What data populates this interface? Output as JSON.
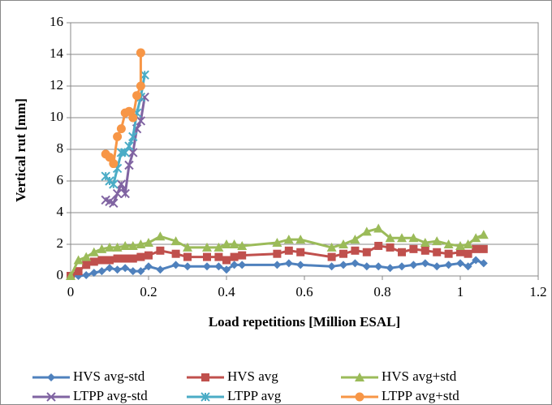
{
  "chart_data": {
    "type": "line",
    "x_label": "Load repetitions [Million ESAL]",
    "y_label": "Vertical rut [mm]",
    "xlim": [
      0,
      1.2
    ],
    "xticks": [
      0,
      0.2,
      0.4,
      0.6,
      0.8,
      1,
      1.2
    ],
    "ylim": [
      0,
      16
    ],
    "yticks": [
      0,
      2,
      4,
      6,
      8,
      10,
      12,
      14,
      16
    ],
    "grid": true,
    "series": [
      {
        "name": "HVS avg-std",
        "color": "#4f81bd",
        "marker": "diamond",
        "x": [
          0,
          0.02,
          0.04,
          0.06,
          0.08,
          0.1,
          0.12,
          0.14,
          0.16,
          0.18,
          0.2,
          0.23,
          0.27,
          0.3,
          0.35,
          0.38,
          0.4,
          0.42,
          0.44,
          0.53,
          0.56,
          0.59,
          0.67,
          0.7,
          0.73,
          0.76,
          0.79,
          0.82,
          0.85,
          0.88,
          0.91,
          0.94,
          0.97,
          1.0,
          1.02,
          1.04,
          1.06
        ],
        "values": [
          0,
          0,
          0.05,
          0.2,
          0.3,
          0.5,
          0.4,
          0.5,
          0.3,
          0.3,
          0.6,
          0.4,
          0.7,
          0.6,
          0.6,
          0.6,
          0.4,
          0.7,
          0.7,
          0.7,
          0.8,
          0.7,
          0.6,
          0.7,
          0.8,
          0.6,
          0.6,
          0.5,
          0.6,
          0.7,
          0.8,
          0.6,
          0.7,
          0.8,
          0.6,
          1.0,
          0.8
        ]
      },
      {
        "name": "HVS avg",
        "color": "#c0504d",
        "marker": "square",
        "x": [
          0,
          0.02,
          0.04,
          0.06,
          0.08,
          0.1,
          0.12,
          0.14,
          0.16,
          0.18,
          0.2,
          0.23,
          0.27,
          0.3,
          0.35,
          0.38,
          0.4,
          0.42,
          0.44,
          0.53,
          0.56,
          0.59,
          0.67,
          0.7,
          0.73,
          0.76,
          0.79,
          0.82,
          0.85,
          0.88,
          0.91,
          0.94,
          0.97,
          1.0,
          1.02,
          1.04,
          1.06
        ],
        "values": [
          0,
          0.3,
          0.7,
          0.9,
          1.0,
          1.0,
          1.1,
          1.1,
          1.1,
          1.2,
          1.3,
          1.6,
          1.4,
          1.2,
          1.2,
          1.2,
          1.0,
          1.2,
          1.3,
          1.4,
          1.6,
          1.5,
          1.2,
          1.4,
          1.6,
          1.5,
          1.9,
          1.8,
          1.5,
          1.7,
          1.6,
          1.5,
          1.4,
          1.5,
          1.4,
          1.7,
          1.7
        ]
      },
      {
        "name": "HVS avg+std",
        "color": "#9bbb59",
        "marker": "triangle",
        "x": [
          0,
          0.02,
          0.04,
          0.06,
          0.08,
          0.1,
          0.12,
          0.14,
          0.16,
          0.18,
          0.2,
          0.23,
          0.27,
          0.3,
          0.35,
          0.38,
          0.4,
          0.42,
          0.44,
          0.53,
          0.56,
          0.59,
          0.67,
          0.7,
          0.73,
          0.76,
          0.79,
          0.82,
          0.85,
          0.88,
          0.91,
          0.94,
          0.97,
          1.0,
          1.02,
          1.04,
          1.06
        ],
        "values": [
          0,
          1.0,
          1.2,
          1.5,
          1.7,
          1.8,
          1.8,
          1.9,
          1.9,
          2.0,
          2.1,
          2.5,
          2.2,
          1.8,
          1.8,
          1.8,
          2.0,
          2.0,
          1.9,
          2.1,
          2.3,
          2.3,
          1.8,
          2.0,
          2.3,
          2.8,
          3.0,
          2.4,
          2.4,
          2.4,
          2.1,
          2.2,
          2.0,
          1.9,
          2.0,
          2.4,
          2.6
        ]
      },
      {
        "name": "LTPP avg-std",
        "color": "#8064a2",
        "marker": "cross",
        "x": [
          0.09,
          0.1,
          0.11,
          0.12,
          0.13,
          0.14,
          0.15,
          0.16,
          0.17,
          0.18,
          0.19
        ],
        "values": [
          4.8,
          4.7,
          4.6,
          5.2,
          5.8,
          5.2,
          7.0,
          7.8,
          9.3,
          9.8,
          11.3
        ]
      },
      {
        "name": "LTPP avg",
        "color": "#4bacc6",
        "marker": "star",
        "x": [
          0.09,
          0.1,
          0.11,
          0.12,
          0.13,
          0.14,
          0.15,
          0.16,
          0.17,
          0.18,
          0.19
        ],
        "values": [
          6.3,
          6.0,
          5.8,
          6.8,
          7.8,
          7.8,
          8.2,
          8.8,
          10.3,
          11.3,
          12.7
        ]
      },
      {
        "name": "LTPP avg+std",
        "color": "#f79646",
        "marker": "circle",
        "x": [
          0.09,
          0.1,
          0.11,
          0.12,
          0.13,
          0.14,
          0.15,
          0.16,
          0.17,
          0.18,
          0.18
        ],
        "values": [
          7.7,
          7.5,
          7.1,
          8.8,
          9.3,
          10.3,
          10.4,
          10.0,
          11.4,
          12.0,
          14.1
        ]
      }
    ]
  }
}
